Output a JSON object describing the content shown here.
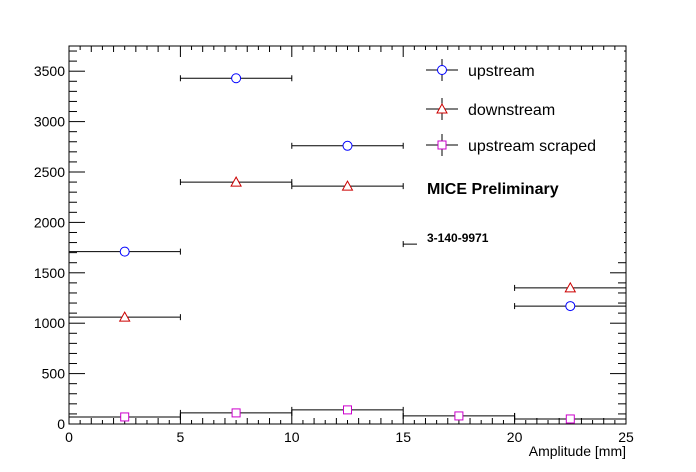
{
  "chart_data": {
    "type": "scatter",
    "xlabel": "Amplitude [mm]",
    "ylabel": "",
    "xlim": [
      0,
      25
    ],
    "ylim": [
      0,
      3750
    ],
    "x_ticks": [
      0,
      5,
      10,
      15,
      20,
      25
    ],
    "y_ticks": [
      0,
      500,
      1000,
      1500,
      2000,
      2500,
      3000,
      3500
    ],
    "grid": false,
    "legend_position": "top-right",
    "annotations": {
      "preliminary": "MICE Preliminary",
      "run_id": "3-140-9971"
    },
    "series": [
      {
        "name": "upstream",
        "marker": "circle",
        "color": "#0000ff",
        "points": [
          {
            "x": 2.5,
            "y": 1710,
            "xerr": 2.5,
            "yerr": 20
          },
          {
            "x": 7.5,
            "y": 3430,
            "xerr": 2.5,
            "yerr": 25
          },
          {
            "x": 12.5,
            "y": 2760,
            "xerr": 2.5,
            "yerr": 25
          },
          {
            "x": 22.5,
            "y": 1170,
            "xerr": 2.5,
            "yerr": 20
          }
        ]
      },
      {
        "name": "downstream",
        "marker": "triangle",
        "color": "#cc0000",
        "points": [
          {
            "x": 2.5,
            "y": 1060,
            "xerr": 2.5,
            "yerr": 18
          },
          {
            "x": 7.5,
            "y": 2400,
            "xerr": 2.5,
            "yerr": 40
          },
          {
            "x": 12.5,
            "y": 2360,
            "xerr": 2.5,
            "yerr": 40
          },
          {
            "x": 17.5,
            "y": 1785,
            "xerr": 2.5,
            "yerr": 15
          },
          {
            "x": 22.5,
            "y": 1350,
            "xerr": 2.5,
            "yerr": 20
          }
        ]
      },
      {
        "name": "upstream scraped",
        "marker": "square",
        "color": "#cc00cc",
        "points": [
          {
            "x": 2.5,
            "y": 70,
            "xerr": 2.5,
            "yerr": 10
          },
          {
            "x": 7.5,
            "y": 110,
            "xerr": 2.5,
            "yerr": 12
          },
          {
            "x": 12.5,
            "y": 140,
            "xerr": 2.5,
            "yerr": 12
          },
          {
            "x": 17.5,
            "y": 80,
            "xerr": 2.5,
            "yerr": 10
          },
          {
            "x": 22.5,
            "y": 50,
            "xerr": 2.5,
            "yerr": 8
          }
        ]
      }
    ]
  }
}
